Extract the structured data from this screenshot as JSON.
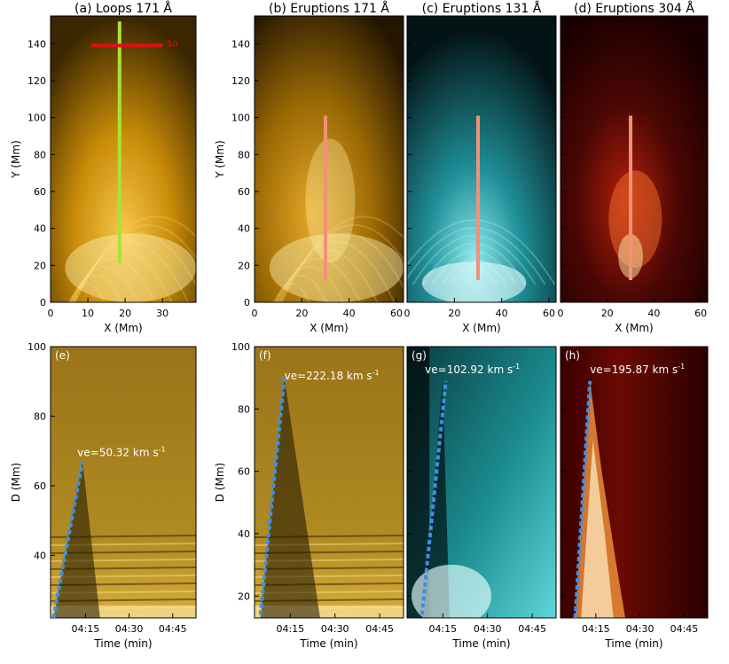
{
  "figure": {
    "panels": [
      {
        "id": "a",
        "title": "(a) Loops 171 Å",
        "label": "",
        "xlabel": "X (Mm)",
        "ylabel": "Y (Mm)",
        "xlim": [
          0,
          39
        ],
        "ylim": [
          0,
          155
        ],
        "xticks": [
          "0",
          "10",
          "20",
          "30"
        ],
        "yticks": [
          "0",
          "20",
          "40",
          "60",
          "80",
          "100",
          "120",
          "140"
        ],
        "tick_x": [
          0,
          10,
          20,
          30
        ],
        "tick_y": [
          0,
          20,
          40,
          60,
          80,
          100,
          120,
          140
        ],
        "colormap": "yellow",
        "cut_color": "#a8e23a",
        "cut": [
          [
            18.5,
            21
          ],
          [
            18.5,
            152
          ]
        ],
        "scale_bar": {
          "x": [
            11,
            30
          ],
          "y": 139,
          "color": "#e01010",
          "label": "50"
        }
      },
      {
        "id": "b",
        "title": "(b) Eruptions 171 Å",
        "label": "",
        "xlabel": "X (Mm)",
        "ylabel": "Y (Mm)",
        "xlim": [
          0,
          63
        ],
        "ylim": [
          0,
          155
        ],
        "xticks": [
          "0",
          "20",
          "40",
          "60"
        ],
        "yticks": [
          "0",
          "20",
          "40",
          "60",
          "80",
          "100",
          "120",
          "140"
        ],
        "tick_x": [
          0,
          20,
          40,
          60
        ],
        "tick_y": [
          0,
          20,
          40,
          60,
          80,
          100,
          120,
          140
        ],
        "colormap": "yellow",
        "cut_color": "#f2907a",
        "cut": [
          [
            30,
            12
          ],
          [
            30,
            101
          ]
        ]
      },
      {
        "id": "c",
        "title": "(c) Eruptions 131 Å",
        "label": "",
        "xlabel": "X (Mm)",
        "ylabel": "",
        "xlim": [
          0,
          63
        ],
        "ylim": [
          0,
          155
        ],
        "xticks": [
          "0",
          "20",
          "40",
          "60"
        ],
        "yticks": [],
        "tick_x": [
          0,
          20,
          40,
          60
        ],
        "tick_y": [
          0,
          20,
          40,
          60,
          80,
          100,
          120,
          140
        ],
        "colormap": "cyan",
        "cut_color": "#f2907a",
        "cut": [
          [
            30,
            12
          ],
          [
            30,
            101
          ]
        ]
      },
      {
        "id": "d",
        "title": "(d) Eruptions 304 Å",
        "label": "",
        "xlabel": "X (Mm)",
        "ylabel": "",
        "xlim": [
          0,
          63
        ],
        "ylim": [
          0,
          155
        ],
        "xticks": [
          "0",
          "20",
          "40",
          "60"
        ],
        "yticks": [],
        "tick_x": [
          0,
          20,
          40,
          60
        ],
        "tick_y": [
          0,
          20,
          40,
          60,
          80,
          100,
          120,
          140
        ],
        "colormap": "red",
        "cut_color": "#f2907a",
        "cut": [
          [
            30,
            12
          ],
          [
            30,
            101
          ]
        ]
      },
      {
        "id": "e",
        "title": "",
        "label": "(e)",
        "xlabel": "Time (min)",
        "ylabel": "D (Mm)",
        "xlim": [
          3.0,
          53.0
        ],
        "ylim": [
          22,
          100
        ],
        "xticks": [
          "04:15",
          "04:30",
          "04:45"
        ],
        "yticks": [
          "40",
          "60",
          "80",
          "100"
        ],
        "tick_x": [
          15,
          30,
          45
        ],
        "tick_y": [
          40,
          60,
          80,
          100
        ],
        "colormap": "yellow",
        "fit_color": "#3d8fe6",
        "fit": [
          [
            4.0,
            22
          ],
          [
            14.0,
            67
          ]
        ],
        "velocity_label": "ve=50.32 km s",
        "velocity_label_sup": "-1",
        "velocity_pos": [
          12.2,
          68.5
        ]
      },
      {
        "id": "f",
        "title": "",
        "label": "(f)",
        "xlabel": "Time (min)",
        "ylabel": "D (Mm)",
        "xlim": [
          3.0,
          53.0
        ],
        "ylim": [
          13,
          100
        ],
        "xticks": [
          "04:15",
          "04:30",
          "04:45"
        ],
        "yticks": [
          "20",
          "40",
          "60",
          "80",
          "100"
        ],
        "tick_x": [
          15,
          30,
          45
        ],
        "tick_y": [
          20,
          40,
          60,
          80,
          100
        ],
        "colormap": "yellow",
        "fit_color": "#3d8fe6",
        "fit": [
          [
            5.0,
            14
          ],
          [
            13.0,
            90
          ]
        ],
        "velocity_label": "ve=222.18 km s",
        "velocity_label_sup": "-1",
        "velocity_pos": [
          13.0,
          89.5
        ]
      },
      {
        "id": "g",
        "title": "",
        "label": "(g)",
        "xlabel": "Time (min)",
        "ylabel": "",
        "xlim": [
          3.0,
          53.0
        ],
        "ylim": [
          13,
          100
        ],
        "xticks": [
          "04:15",
          "04:30",
          "04:45"
        ],
        "yticks": [],
        "tick_x": [
          15,
          30,
          45
        ],
        "tick_y": [
          20,
          40,
          60,
          80,
          100
        ],
        "colormap": "cyan",
        "fit_color": "#3d8fe6",
        "fit": [
          [
            8.0,
            14
          ],
          [
            16.0,
            89
          ]
        ],
        "velocity_label": "ve=102.92 km s",
        "velocity_label_sup": "-1",
        "velocity_pos": [
          9.0,
          91.5
        ]
      },
      {
        "id": "h",
        "title": "",
        "label": "(h)",
        "xlabel": "Time (min)",
        "ylabel": "",
        "xlim": [
          3.0,
          53.0
        ],
        "ylim": [
          13,
          100
        ],
        "xticks": [
          "04:15",
          "04:30",
          "04:45"
        ],
        "yticks": [],
        "tick_x": [
          15,
          30,
          45
        ],
        "tick_y": [
          20,
          40,
          60,
          80,
          100
        ],
        "colormap": "red",
        "fit_color": "#3d8fe6",
        "fit": [
          [
            8.0,
            13
          ],
          [
            13.0,
            89
          ]
        ],
        "velocity_label": "ve=195.87 km s",
        "velocity_label_sup": "-1",
        "velocity_pos": [
          13.0,
          91.5
        ]
      }
    ]
  },
  "chart_data": [
    {
      "type": "heatmap",
      "title": "(a) Loops 171 Å",
      "xlabel": "X (Mm)",
      "ylabel": "Y (Mm)",
      "xlim": [
        0,
        39
      ],
      "ylim": [
        0,
        155
      ],
      "annotations": [
        "slit from (18.5, 21) to (18.5, 152)",
        "scale bar 50"
      ]
    },
    {
      "type": "heatmap",
      "title": "(b) Eruptions 171 Å",
      "xlabel": "X (Mm)",
      "ylabel": "Y (Mm)",
      "xlim": [
        0,
        63
      ],
      "ylim": [
        0,
        155
      ],
      "annotations": [
        "slit from (30, 12) to (30, 101)"
      ]
    },
    {
      "type": "heatmap",
      "title": "(c) Eruptions 131 Å",
      "xlabel": "X (Mm)",
      "xlim": [
        0,
        63
      ],
      "ylim": [
        0,
        155
      ],
      "annotations": [
        "slit from (30, 12) to (30, 101)"
      ]
    },
    {
      "type": "heatmap",
      "title": "(d) Eruptions 304 Å",
      "xlabel": "X (Mm)",
      "xlim": [
        0,
        63
      ],
      "ylim": [
        0,
        155
      ],
      "annotations": [
        "slit from (30, 12) to (30, 101)"
      ]
    },
    {
      "type": "heatmap",
      "title": "(e)",
      "xlabel": "Time (min)",
      "ylabel": "D (Mm)",
      "x_tick_labels": [
        "04:15",
        "04:30",
        "04:45"
      ],
      "ylim": [
        22,
        100
      ],
      "fit_line": {
        "x": [
          4.0,
          14.0
        ],
        "y": [
          22,
          67
        ]
      },
      "annotation": "ve=50.32 km s-1"
    },
    {
      "type": "heatmap",
      "title": "(f)",
      "xlabel": "Time (min)",
      "ylabel": "D (Mm)",
      "x_tick_labels": [
        "04:15",
        "04:30",
        "04:45"
      ],
      "ylim": [
        13,
        100
      ],
      "fit_line": {
        "x": [
          5.0,
          13.0
        ],
        "y": [
          14,
          90
        ]
      },
      "annotation": "ve=222.18 km s-1"
    },
    {
      "type": "heatmap",
      "title": "(g)",
      "xlabel": "Time (min)",
      "x_tick_labels": [
        "04:15",
        "04:30",
        "04:45"
      ],
      "ylim": [
        13,
        100
      ],
      "fit_line": {
        "x": [
          8.0,
          16.0
        ],
        "y": [
          14,
          89
        ]
      },
      "annotation": "ve=102.92 km s-1"
    },
    {
      "type": "heatmap",
      "title": "(h)",
      "xlabel": "Time (min)",
      "x_tick_labels": [
        "04:15",
        "04:30",
        "04:45"
      ],
      "ylim": [
        13,
        100
      ],
      "fit_line": {
        "x": [
          8.0,
          13.0
        ],
        "y": [
          13,
          89
        ]
      },
      "annotation": "ve=195.87 km s-1"
    }
  ]
}
